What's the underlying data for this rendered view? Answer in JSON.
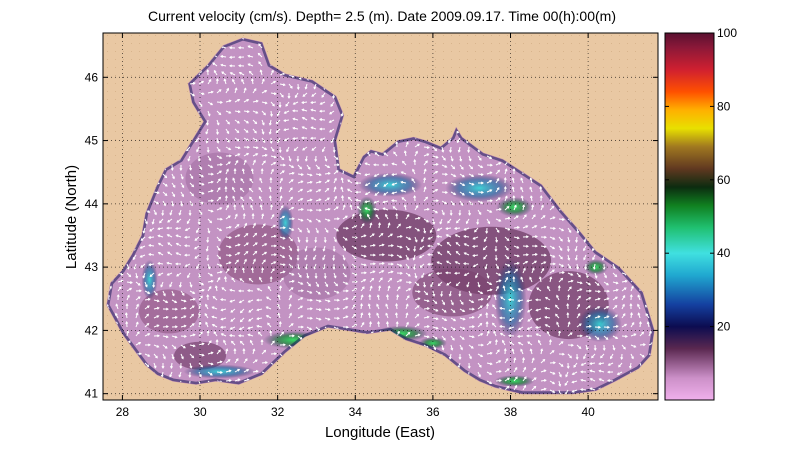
{
  "title": "Current velocity (cm/s). Depth=  2.5 (m). Date 2009.09.17. Time 00(h):00(m)",
  "chart_data": {
    "type": "map",
    "xlabel": "Longitude (East)",
    "ylabel": "Latitude (North)",
    "xlim": [
      27.5,
      41.8
    ],
    "ylim": [
      40.9,
      46.7
    ],
    "x_ticks": [
      "28",
      "30",
      "32",
      "34",
      "36",
      "38",
      "40"
    ],
    "x_tick_values": [
      28,
      30,
      32,
      34,
      36,
      38,
      40
    ],
    "y_ticks": [
      "41",
      "42",
      "43",
      "44",
      "45",
      "46"
    ],
    "y_tick_values": [
      41,
      42,
      43,
      44,
      45,
      46
    ],
    "grid": true,
    "colorbar": {
      "range": [
        0,
        100
      ],
      "ticks": [
        "20",
        "40",
        "60",
        "80",
        "100"
      ],
      "tick_values": [
        20,
        40,
        60,
        80,
        100
      ]
    },
    "colors": {
      "land": "#e9c8a3",
      "sea": "#c393c3",
      "sea_dark": "#8a4f7c",
      "arrows": "#ffffff"
    }
  }
}
